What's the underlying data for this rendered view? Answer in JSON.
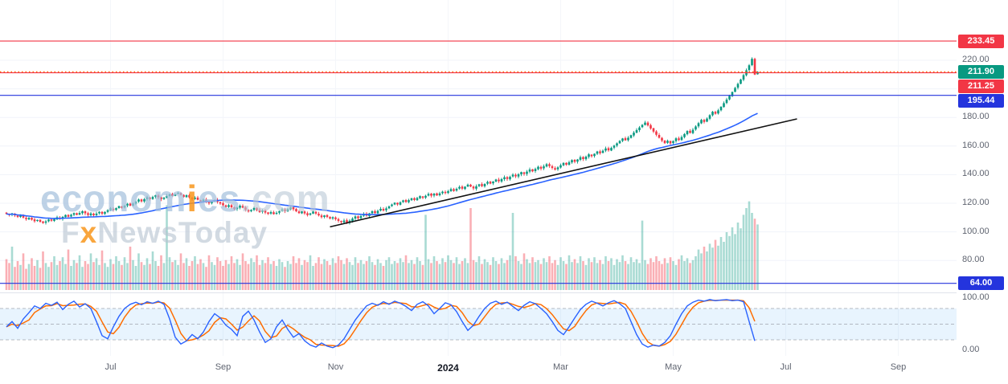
{
  "watermark": {
    "part1": "econom",
    "part2": "i",
    "part3": "es",
    "part4": ".com",
    "part5": "F",
    "part6": "x",
    "part7": "NewsToday"
  },
  "price_axis": {
    "ticks": [
      {
        "label": "220.00",
        "value": 220
      },
      {
        "label": "180.00",
        "value": 180
      },
      {
        "label": "160.00",
        "value": 160
      },
      {
        "label": "140.00",
        "value": 140
      },
      {
        "label": "120.00",
        "value": 120
      },
      {
        "label": "100.00",
        "value": 100
      },
      {
        "label": "80.00",
        "value": 80
      }
    ],
    "grid_values": [
      220,
      200,
      180,
      160,
      140,
      120,
      100,
      80
    ],
    "badges": [
      {
        "label": "233.45",
        "value": 233.45,
        "bg": "#f23645"
      },
      {
        "label": "211.90",
        "value": 211.9,
        "bg": "#089981"
      },
      {
        "label": "211.25",
        "value": 211.25,
        "bg": "#f23645"
      },
      {
        "label": "195.44",
        "value": 195.44,
        "bg": "#2434dd"
      },
      {
        "label": "64.00",
        "value": 64.0,
        "bg": "#2434dd"
      }
    ],
    "osc_ticks": [
      {
        "label": "100.00",
        "value": 100
      },
      {
        "label": "0.00",
        "value": 0
      }
    ]
  },
  "time_axis": {
    "labels": [
      {
        "text": "Jul",
        "day": 37
      },
      {
        "text": "Sep",
        "day": 77
      },
      {
        "text": "Nov",
        "day": 117
      },
      {
        "text": "2024",
        "day": 157,
        "bold": true
      },
      {
        "text": "Mar",
        "day": 197
      },
      {
        "text": "May",
        "day": 237
      },
      {
        "text": "Jul",
        "day": 277
      },
      {
        "text": "Sep",
        "day": 317
      }
    ]
  },
  "chart_data": {
    "type": "candlestick",
    "ylim_price_pane": [
      59,
      262
    ],
    "visible_span": "May 2023 - Sep 2024",
    "candle_up": "#089981",
    "candle_down": "#f23645",
    "vol_up": "rgba(8,153,129,0.35)",
    "vol_down": "rgba(242,54,69,0.40)",
    "ma_period": 40,
    "ma_color": "#2962ff",
    "closes": [
      112.6,
      111.8,
      112.9,
      111.5,
      110.4,
      111.3,
      110.0,
      108.9,
      109.8,
      108.5,
      107.4,
      108.3,
      107.0,
      106.2,
      107.3,
      108.6,
      107.8,
      108.9,
      110.2,
      109.1,
      110.5,
      111.8,
      110.6,
      111.9,
      113.1,
      111.9,
      113.2,
      114.4,
      113.0,
      111.8,
      112.9,
      111.6,
      112.8,
      114.0,
      112.7,
      113.9,
      115.1,
      116.4,
      115.2,
      116.6,
      118.0,
      116.8,
      118.2,
      119.6,
      118.3,
      119.8,
      121.2,
      122.6,
      121.3,
      122.8,
      124.2,
      122.9,
      124.4,
      125.6,
      124.2,
      122.8,
      123.9,
      125.1,
      126.3,
      125.0,
      126.4,
      127.3,
      125.8,
      124.4,
      125.6,
      124.1,
      122.7,
      123.9,
      122.4,
      121.2,
      122.5,
      121.0,
      119.9,
      121.1,
      122.3,
      120.9,
      119.8,
      118.6,
      117.4,
      118.7,
      117.2,
      115.9,
      117.1,
      118.3,
      116.9,
      115.5,
      114.2,
      115.3,
      116.6,
      115.1,
      113.8,
      114.9,
      113.5,
      112.6,
      113.8,
      112.4,
      113.3,
      114.5,
      115.7,
      114.4,
      115.9,
      117.1,
      115.8,
      114.4,
      113.1,
      114.3,
      112.9,
      111.7,
      112.9,
      114.2,
      112.8,
      111.5,
      110.3,
      111.5,
      110.4,
      109.3,
      110.2,
      108.9,
      107.7,
      106.8,
      107.9,
      106.5,
      107.8,
      109.3,
      110.8,
      109.5,
      111.1,
      112.6,
      111.3,
      112.9,
      114.4,
      113.1,
      114.7,
      116.1,
      114.9,
      116.4,
      117.8,
      119.1,
      120.4,
      119.2,
      120.7,
      122.0,
      120.8,
      122.2,
      123.5,
      122.3,
      123.7,
      125.0,
      123.8,
      125.2,
      126.5,
      125.3,
      126.7,
      125.5,
      126.9,
      128.1,
      127.2,
      128.5,
      129.9,
      128.6,
      130.1,
      131.4,
      130.2,
      131.6,
      133.0,
      131.7,
      130.4,
      131.8,
      133.2,
      132.0,
      133.5,
      134.9,
      133.7,
      135.2,
      136.6,
      135.4,
      136.9,
      138.2,
      137.0,
      138.5,
      140.0,
      138.8,
      140.3,
      141.8,
      140.5,
      142.1,
      143.6,
      142.3,
      144.0,
      145.5,
      144.2,
      145.8,
      147.3,
      146.0,
      144.7,
      143.5,
      145.1,
      146.6,
      148.2,
      147.0,
      148.7,
      150.2,
      149.0,
      150.6,
      152.2,
      150.9,
      152.6,
      154.2,
      152.9,
      154.6,
      156.2,
      155.0,
      156.7,
      158.3,
      157.0,
      158.7,
      160.3,
      161.9,
      163.6,
      165.3,
      164.0,
      165.8,
      167.6,
      169.4,
      171.2,
      173.0,
      174.8,
      176.4,
      174.4,
      172.3,
      170.1,
      167.9,
      165.8,
      163.8,
      162.0,
      163.7,
      161.9,
      163.5,
      165.4,
      164.2,
      166.3,
      168.4,
      170.5,
      169.2,
      171.4,
      173.7,
      176.0,
      178.3,
      176.9,
      179.2,
      181.6,
      184.0,
      182.6,
      185.0,
      187.5,
      190.0,
      192.5,
      195.1,
      197.8,
      200.6,
      203.5,
      206.5,
      209.6,
      213.0,
      216.5,
      221.0,
      210.0,
      211.9
    ],
    "volumes": [
      32,
      28,
      45,
      24,
      30,
      26,
      38,
      22,
      27,
      33,
      25,
      31,
      23,
      40,
      28,
      24,
      29,
      35,
      26,
      30,
      34,
      27,
      42,
      25,
      31,
      28,
      36,
      24,
      30,
      27,
      38,
      29,
      33,
      26,
      41,
      28,
      24,
      32,
      27,
      35,
      30,
      26,
      34,
      28,
      45,
      31,
      25,
      38,
      29,
      26,
      33,
      27,
      40,
      30,
      25,
      36,
      28,
      88,
      34,
      29,
      31,
      26,
      38,
      28,
      33,
      25,
      30,
      35,
      27,
      32,
      28,
      24,
      36,
      29,
      26,
      34,
      30,
      25,
      31,
      27,
      35,
      28,
      32,
      26,
      38,
      30,
      27,
      33,
      29,
      36,
      26,
      31,
      28,
      34,
      27,
      30,
      25,
      32,
      29,
      24,
      30,
      27,
      35,
      28,
      33,
      26,
      31,
      29,
      36,
      25,
      28,
      34,
      27,
      32,
      30,
      26,
      33,
      28,
      35,
      31,
      27,
      33,
      29,
      26,
      34,
      28,
      31,
      27,
      30,
      35,
      29,
      26,
      32,
      28,
      25,
      31,
      34,
      27,
      30,
      28,
      33,
      29,
      36,
      28,
      31,
      27,
      34,
      30,
      26,
      78,
      32,
      28,
      35,
      30,
      27,
      33,
      29,
      36,
      31,
      28,
      34,
      27,
      30,
      33,
      28,
      85,
      31,
      29,
      35,
      27,
      32,
      29,
      26,
      34,
      30,
      27,
      33,
      28,
      31,
      36,
      80,
      35,
      30,
      27,
      38,
      32,
      28,
      34,
      29,
      31,
      27,
      33,
      29,
      35,
      28,
      31,
      26,
      34,
      30,
      27,
      36,
      29,
      32,
      28,
      35,
      30,
      26,
      33,
      29,
      34,
      28,
      31,
      27,
      35,
      30,
      33,
      26,
      32,
      29,
      36,
      30,
      27,
      34,
      29,
      32,
      28,
      72,
      31,
      27,
      33,
      29,
      35,
      30,
      27,
      33,
      28,
      34,
      30,
      26,
      32,
      36,
      30,
      33,
      28,
      31,
      35,
      42,
      38,
      45,
      40,
      48,
      44,
      52,
      46,
      55,
      50,
      60,
      56,
      65,
      58,
      70,
      64,
      78,
      85,
      92,
      80,
      74,
      68
    ],
    "hlines": [
      {
        "price": 233.45,
        "color": "#f23645",
        "style": "solid"
      },
      {
        "price": 211.9,
        "color": "#ff6d00",
        "style": "dotted"
      },
      {
        "price": 211.25,
        "color": "#f23645",
        "style": "solid"
      },
      {
        "price": 195.44,
        "color": "#2434dd",
        "style": "solid"
      },
      {
        "price": 64.0,
        "color": "#2434dd",
        "style": "solid"
      }
    ],
    "trendline": {
      "d1": 115,
      "p1": 103.5,
      "d2": 281,
      "p2": 179.0,
      "color": "#111111"
    },
    "oscillator": {
      "type": "stochastic",
      "range": [
        0,
        100
      ],
      "levels": [
        80,
        50,
        20
      ],
      "band": [
        20,
        80
      ],
      "band_fill": "rgba(33,150,243,0.10)",
      "k_color": "#2962ff",
      "d_color": "#ff6d00",
      "d_smoothing": 3,
      "k_step_days": 2,
      "k": [
        45,
        55,
        42,
        60,
        72,
        85,
        80,
        90,
        86,
        92,
        78,
        88,
        94,
        83,
        89,
        80,
        55,
        28,
        22,
        45,
        65,
        80,
        88,
        92,
        87,
        93,
        90,
        94,
        88,
        60,
        25,
        12,
        18,
        30,
        22,
        35,
        55,
        70,
        62,
        48,
        40,
        28,
        65,
        75,
        58,
        35,
        15,
        22,
        45,
        58,
        40,
        25,
        32,
        18,
        10,
        6,
        14,
        8,
        5,
        10,
        22,
        40,
        58,
        72,
        85,
        90,
        86,
        93,
        88,
        94,
        90,
        84,
        76,
        88,
        93,
        85,
        70,
        80,
        91,
        87,
        74,
        55,
        38,
        48,
        65,
        80,
        90,
        94,
        88,
        92,
        84,
        76,
        86,
        93,
        89,
        80,
        70,
        55,
        38,
        30,
        45,
        62,
        78,
        88,
        94,
        90,
        85,
        91,
        95,
        89,
        80,
        55,
        30,
        12,
        6,
        10,
        8,
        15,
        28,
        50,
        70,
        85,
        92,
        96,
        94,
        97,
        95,
        96,
        97,
        95,
        96,
        93,
        55,
        18
      ]
    }
  }
}
